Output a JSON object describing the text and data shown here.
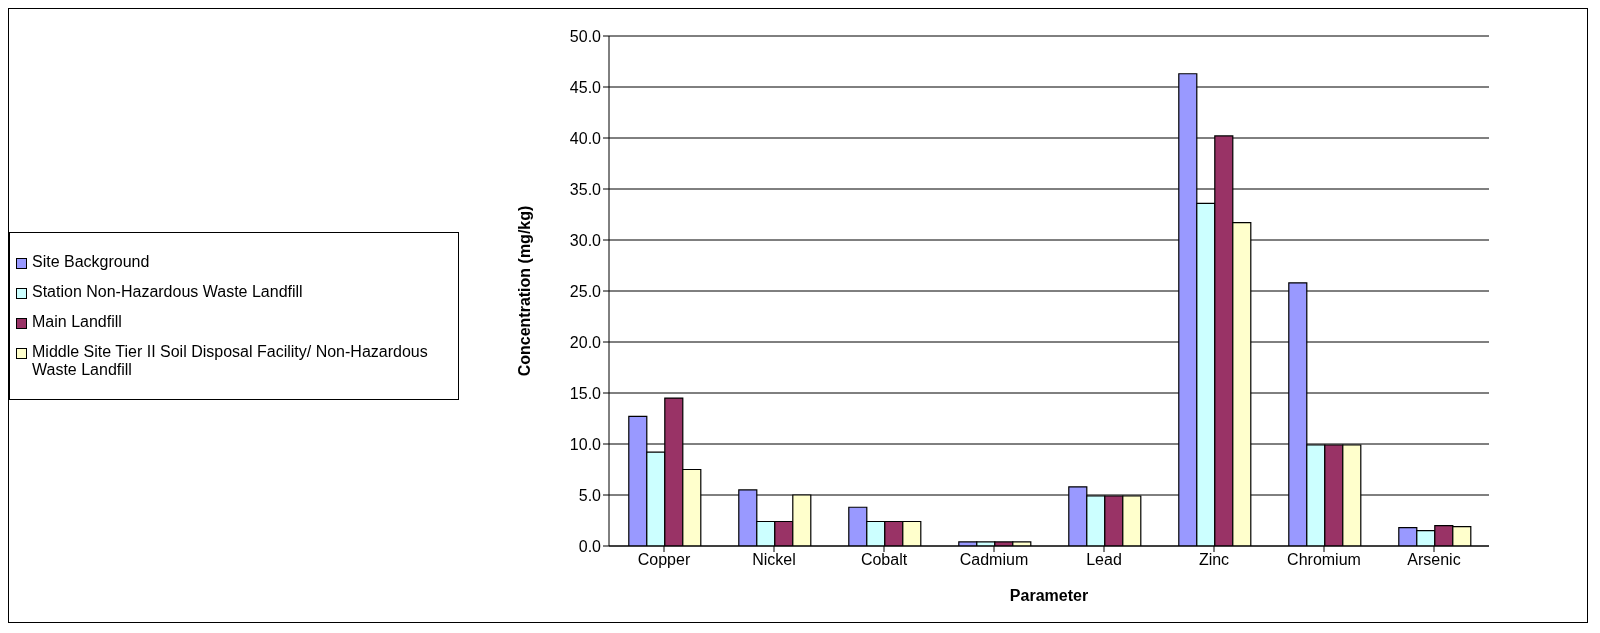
{
  "chart_data": {
    "type": "bar",
    "xlabel": "Parameter",
    "ylabel": "Concentration (mg/kg)",
    "categories": [
      "Copper",
      "Nickel",
      "Cobalt",
      "Cadmium",
      "Lead",
      "Zinc",
      "Chromium",
      "Arsenic"
    ],
    "series": [
      {
        "name": "Site Background",
        "color": "#9999ff",
        "values": [
          12.7,
          5.5,
          3.8,
          0.4,
          5.8,
          46.3,
          25.8,
          1.8
        ]
      },
      {
        "name": "Station Non-Hazardous Waste Landfill",
        "color": "#ccffff",
        "values": [
          9.2,
          2.4,
          2.4,
          0.4,
          4.9,
          33.6,
          9.9,
          1.5
        ]
      },
      {
        "name": "Main Landfill",
        "color": "#993366",
        "values": [
          14.5,
          2.4,
          2.4,
          0.4,
          4.9,
          40.2,
          9.9,
          2.0
        ]
      },
      {
        "name": "Middle Site Tier II Soil Disposal Facility/ Non-Hazardous Waste Landfill",
        "color": "#ffffcc",
        "values": [
          7.5,
          5.0,
          2.4,
          0.4,
          4.9,
          31.7,
          9.9,
          1.9
        ]
      }
    ],
    "ylim": [
      0,
      50
    ],
    "yticks": [
      {
        "value": 0,
        "label": "0.0"
      },
      {
        "value": 5,
        "label": "5.0"
      },
      {
        "value": 10,
        "label": "10.0"
      },
      {
        "value": 15,
        "label": "15.0"
      },
      {
        "value": 20,
        "label": "20.0"
      },
      {
        "value": 25,
        "label": "25.0"
      },
      {
        "value": 30,
        "label": "30.0"
      },
      {
        "value": 35,
        "label": "35.0"
      },
      {
        "value": 40,
        "label": "40.0"
      },
      {
        "value": 45,
        "label": "45.0"
      },
      {
        "value": 50,
        "label": "50.0"
      }
    ],
    "grid": "y",
    "legend": "left"
  }
}
